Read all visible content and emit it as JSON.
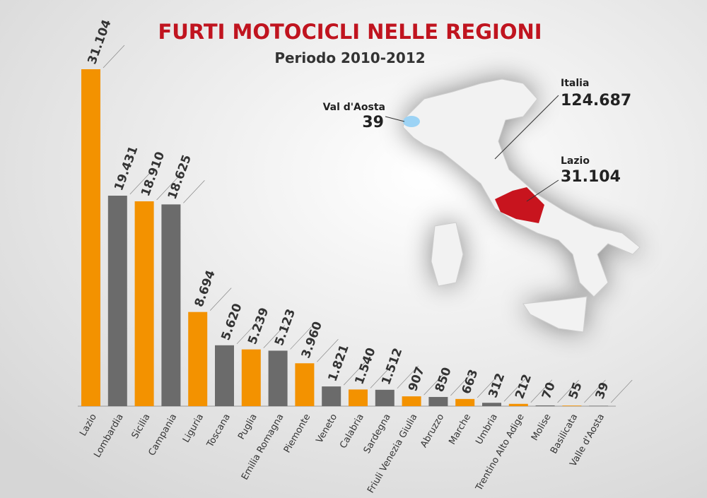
{
  "chart_data": {
    "type": "bar",
    "title": "FURTI MOTOCICLI NELLE REGIONI",
    "subtitle": "Periodo 2010-2012",
    "categories": [
      "Lazio",
      "Lombardia",
      "Sicilia",
      "Campania",
      "Liguria",
      "Toscana",
      "Puglia",
      "Emilia Romagna",
      "Piemonte",
      "Veneto",
      "Calabria",
      "Sardegna",
      "Friuli Venezia Giulia",
      "Abruzzo",
      "Marche",
      "Umbria",
      "Trentino Alto Adige",
      "Molise",
      "Basilicata",
      "Valle d'Aosta"
    ],
    "values": [
      31104,
      19431,
      18910,
      18625,
      8694,
      5620,
      5239,
      5123,
      3960,
      1821,
      1540,
      1512,
      907,
      850,
      663,
      312,
      212,
      70,
      55,
      39
    ],
    "value_labels": [
      "31.104",
      "19.431",
      "18.910",
      "18.625",
      "8.694",
      "5.620",
      "5.239",
      "5.123",
      "3.960",
      "1.821",
      "1.540",
      "1.512",
      "907",
      "850",
      "663",
      "312",
      "212",
      "70",
      "55",
      "39"
    ],
    "colors": [
      "#f39200",
      "#6b6b6b",
      "#f39200",
      "#6b6b6b",
      "#f39200",
      "#6b6b6b",
      "#f39200",
      "#6b6b6b",
      "#f39200",
      "#6b6b6b",
      "#f39200",
      "#6b6b6b",
      "#f39200",
      "#6b6b6b",
      "#f39200",
      "#6b6b6b",
      "#f39200",
      "#6b6b6b",
      "#f39200",
      "#6b6b6b"
    ],
    "annotations": [
      {
        "label": "Italia",
        "value": 124687,
        "value_label": "124.687"
      },
      {
        "label": "Val d'Aosta",
        "value": 39,
        "value_label": "39"
      },
      {
        "label": "Lazio",
        "value": 31104,
        "value_label": "31.104"
      }
    ]
  }
}
